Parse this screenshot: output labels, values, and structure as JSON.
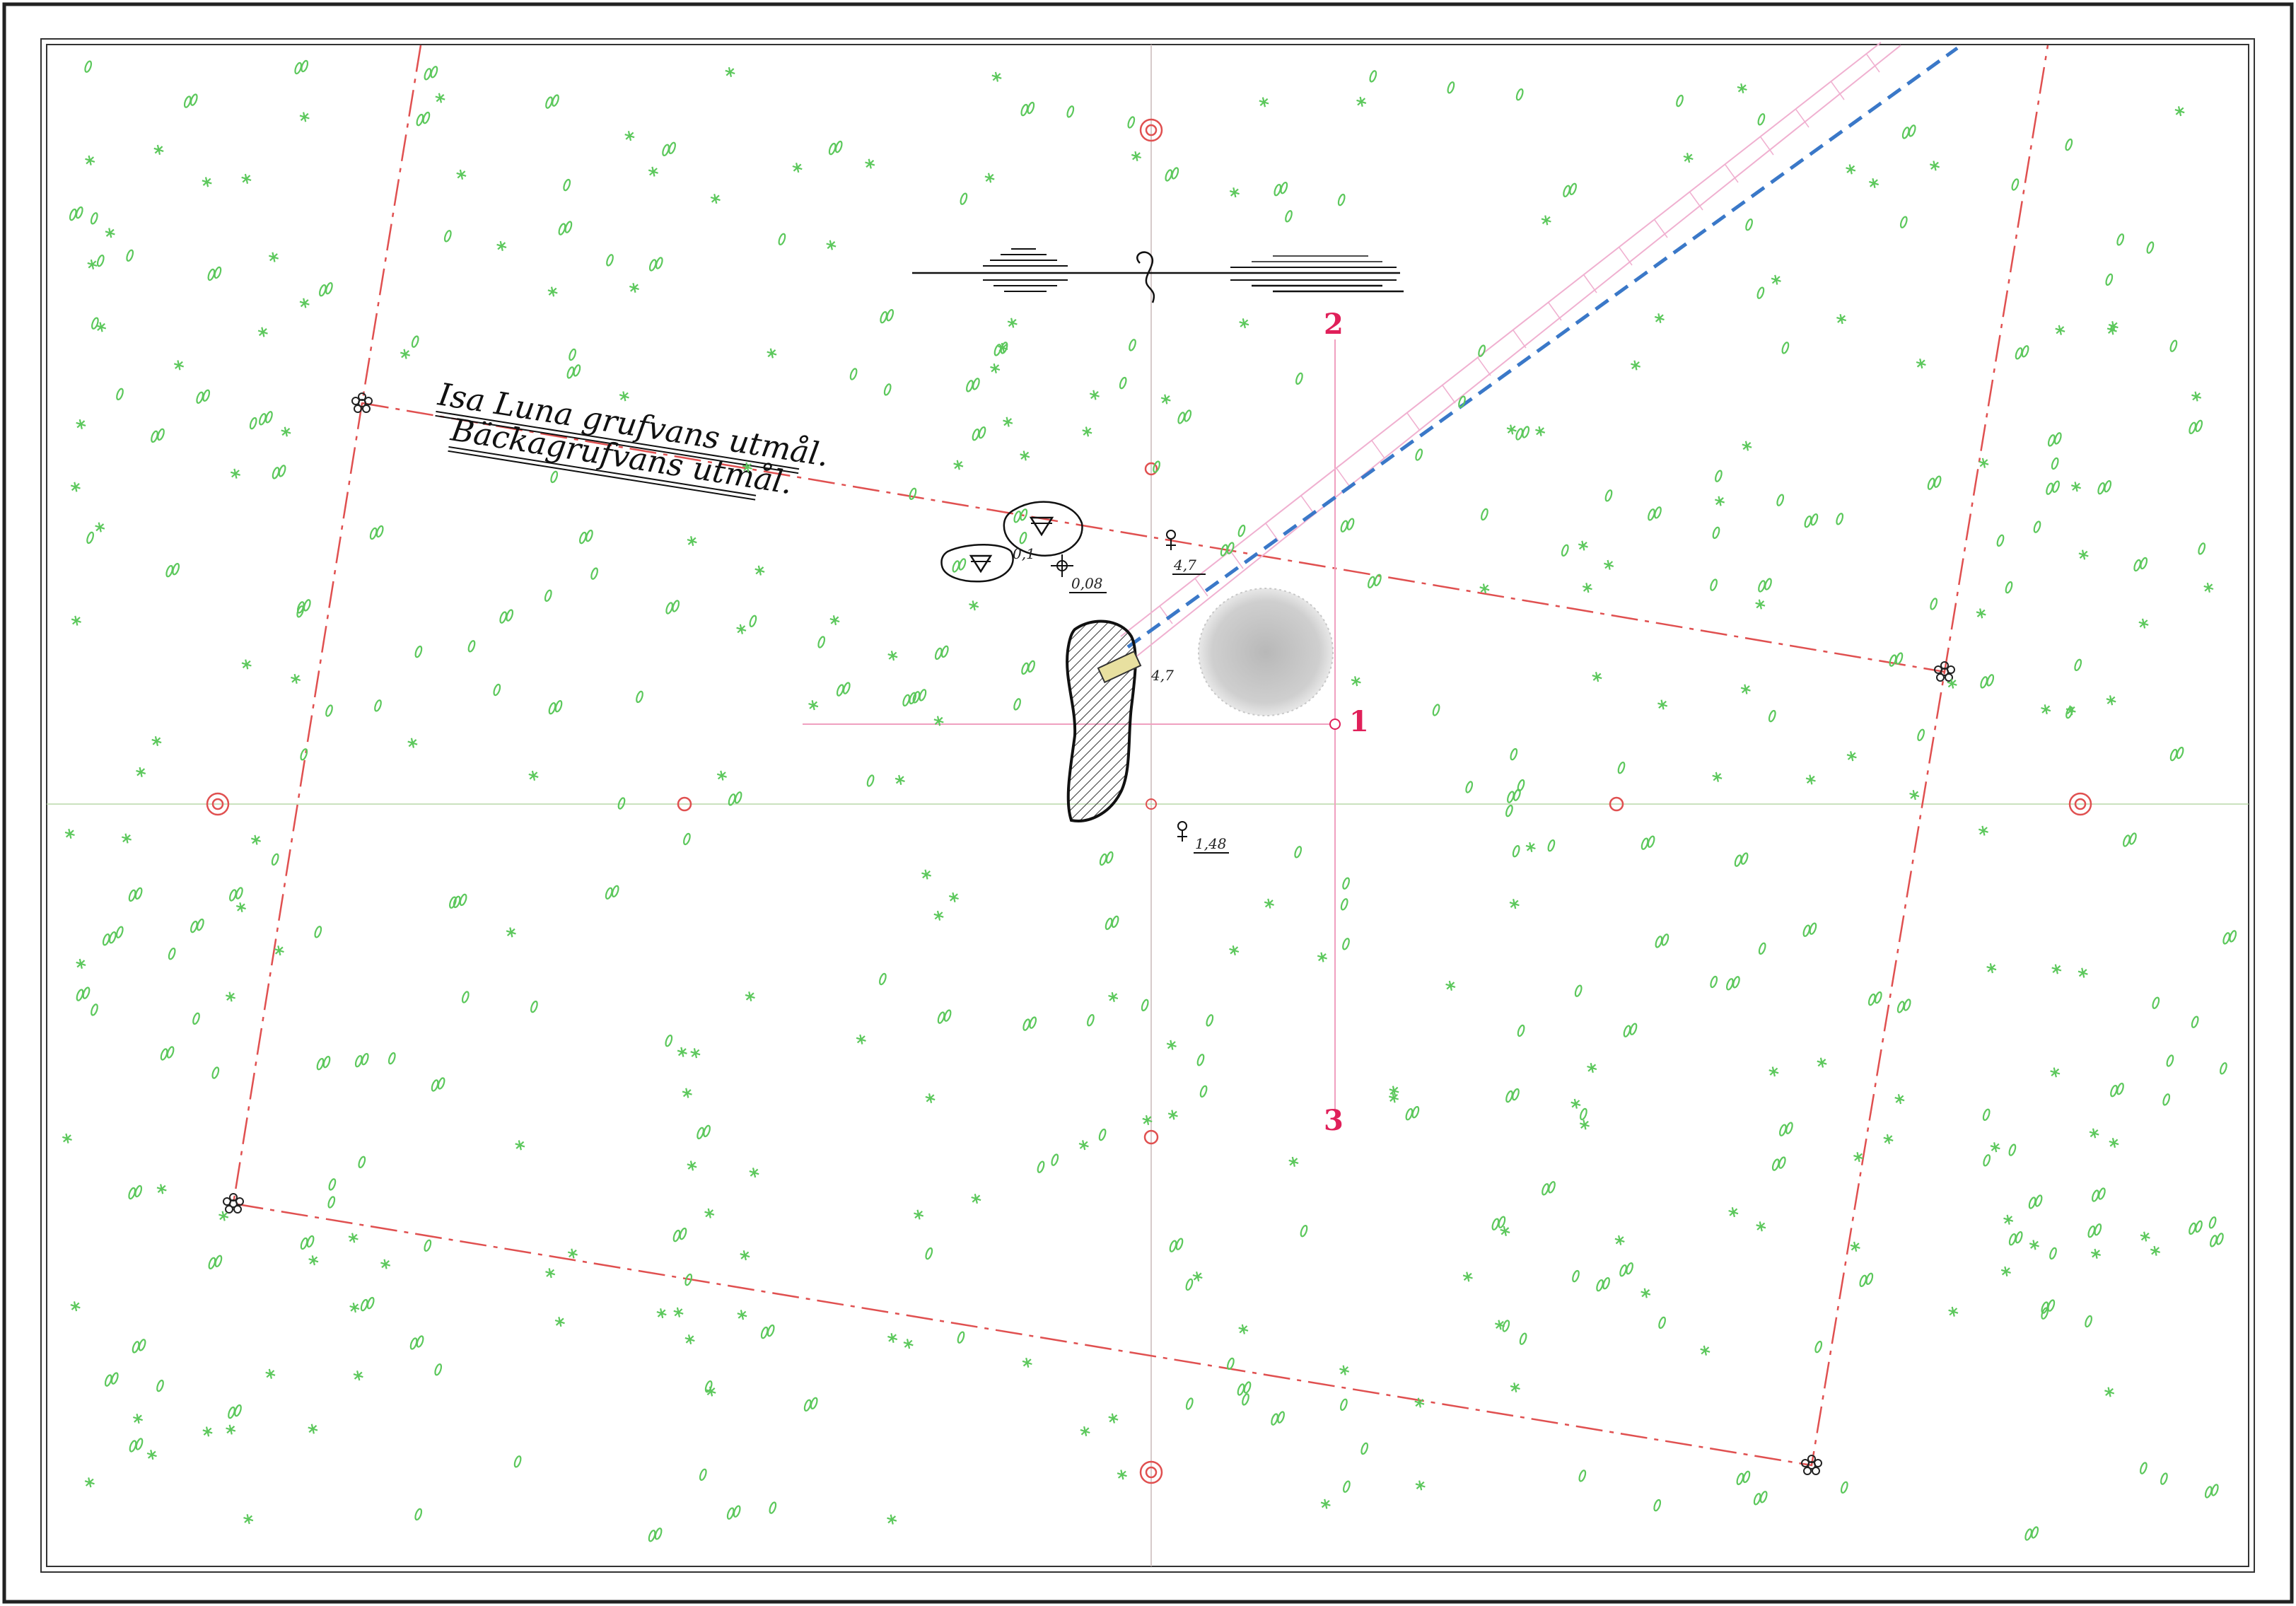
{
  "claim_labels": {
    "isa_luna": "Isa Luna grufvans utmål.",
    "backa": "Bäckagrufvans utmål."
  },
  "point_labels": {
    "p1": "1",
    "p2": "2",
    "p3": "3",
    "v_small": "0,1",
    "depth_a": "0,08",
    "depth_b": "4,7",
    "depth_c": "1,48",
    "mine_num": "4,7"
  },
  "colors": {
    "boundary": "#e05050",
    "vegetation": "#5cc85c",
    "water_course": "#3a78c8",
    "shaft_line": "#f0a0c0",
    "station_mark": "#e0205a"
  },
  "icon_names": [
    "double-circle-marker-icon",
    "flower-boundary-marker-icon",
    "triangle-pit-icon",
    "compass-north-icon",
    "crosshair-icon",
    "venus-depth-icon"
  ]
}
